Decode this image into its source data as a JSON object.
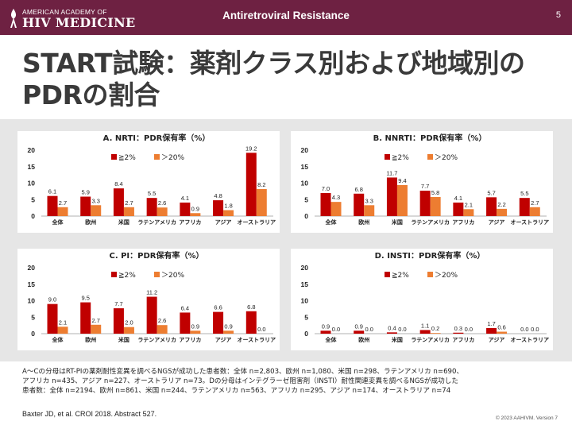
{
  "header": {
    "logo_line1": "AMERICAN ACADEMY OF",
    "logo_line2": "HIV MEDICINE",
    "title": "Antiretroviral Resistance",
    "page_number": "5"
  },
  "slide_title": "START試験：薬剤クラス別および地域別のPDRの割合",
  "colors": {
    "ge2": "#c00000",
    "gt20": "#ed7d31",
    "header": "#6e2142"
  },
  "legend": {
    "ge2": "≧2%",
    "gt20": "＞20%"
  },
  "chart_data": [
    {
      "type": "bar",
      "title": "A. NRTI：PDR保有率（%）",
      "categories": [
        "全体",
        "欧州",
        "米国",
        "ラテンアメリカ",
        "アフリカ",
        "アジア",
        "オーストラリア"
      ],
      "series": [
        {
          "name": "≧2%",
          "values": [
            6.1,
            5.9,
            8.4,
            5.5,
            4.1,
            4.8,
            19.2
          ]
        },
        {
          "name": "＞20%",
          "values": [
            2.7,
            3.3,
            2.7,
            2.6,
            0.9,
            1.8,
            8.2
          ]
        }
      ],
      "yticks": [
        "0",
        "5",
        "10",
        "15",
        "20"
      ],
      "ylim": [
        0,
        20
      ]
    },
    {
      "type": "bar",
      "title": "B. NNRTI：PDR保有率（%）",
      "categories": [
        "全体",
        "欧州",
        "米国",
        "ラテンアメリカ",
        "アフリカ",
        "アジア",
        "オーストラリア"
      ],
      "series": [
        {
          "name": "≧2%",
          "values": [
            7.0,
            6.8,
            11.7,
            7.7,
            4.1,
            5.7,
            5.5
          ]
        },
        {
          "name": "＞20%",
          "values": [
            4.3,
            3.3,
            9.4,
            5.8,
            2.1,
            2.2,
            2.7
          ]
        }
      ],
      "yticks": [
        "0",
        "5",
        "10",
        "15",
        "20"
      ],
      "ylim": [
        0,
        20
      ]
    },
    {
      "type": "bar",
      "title": "C. PI：PDR保有率（%）",
      "categories": [
        "全体",
        "欧州",
        "米国",
        "ラテンアメリカ",
        "アフリカ",
        "アジア",
        "オーストラリア"
      ],
      "series": [
        {
          "name": "≧2%",
          "values": [
            9.0,
            9.5,
            7.7,
            11.2,
            6.4,
            6.6,
            6.8
          ]
        },
        {
          "name": "＞20%",
          "values": [
            2.1,
            2.7,
            2.0,
            2.6,
            0.9,
            0.9,
            0.0
          ]
        }
      ],
      "yticks": [
        "0",
        "5",
        "10",
        "15",
        "20"
      ],
      "ylim": [
        0,
        20
      ]
    },
    {
      "type": "bar",
      "title": "D. INSTI：PDR保有率（%）",
      "categories": [
        "全体",
        "欧州",
        "米国",
        "ラテンアメリカ",
        "アフリカ",
        "アジア",
        "オーストラリア"
      ],
      "series": [
        {
          "name": "≧2%",
          "values": [
            0.9,
            0.9,
            0.4,
            1.1,
            0.3,
            1.7,
            0.0
          ]
        },
        {
          "name": "＞20%",
          "values": [
            0.0,
            0.0,
            0.0,
            0.2,
            0.0,
            0.6,
            0.0
          ]
        }
      ],
      "yticks": [
        "0",
        "5",
        "10",
        "15",
        "20"
      ],
      "ylim": [
        0,
        20
      ]
    }
  ],
  "notes": [
    "A～Cの分母はRT-PIの薬剤耐性変異を調べるNGSが成功した患者数：全体 n=2,803、欧州 n=1,080、米国 n=298、ラテンアメリカ n=690、",
    "アフリカ n=435、アジア n=227、オーストラリア n=73。Dの分母はインテグラーゼ阻害剤（INSTI）耐性関連変異を調べるNGSが成功した",
    "患者数：全体 n=2194、欧州 n=861、米国 n=244、ラテンアメリカ n=563、アフリカ n=295、アジア n=174、オーストラリア n=74"
  ],
  "citation": "Baxter JD, et al. CROI 2018. Abstract 527.",
  "copyright": "© 2023 AAHIVM. Version 7"
}
